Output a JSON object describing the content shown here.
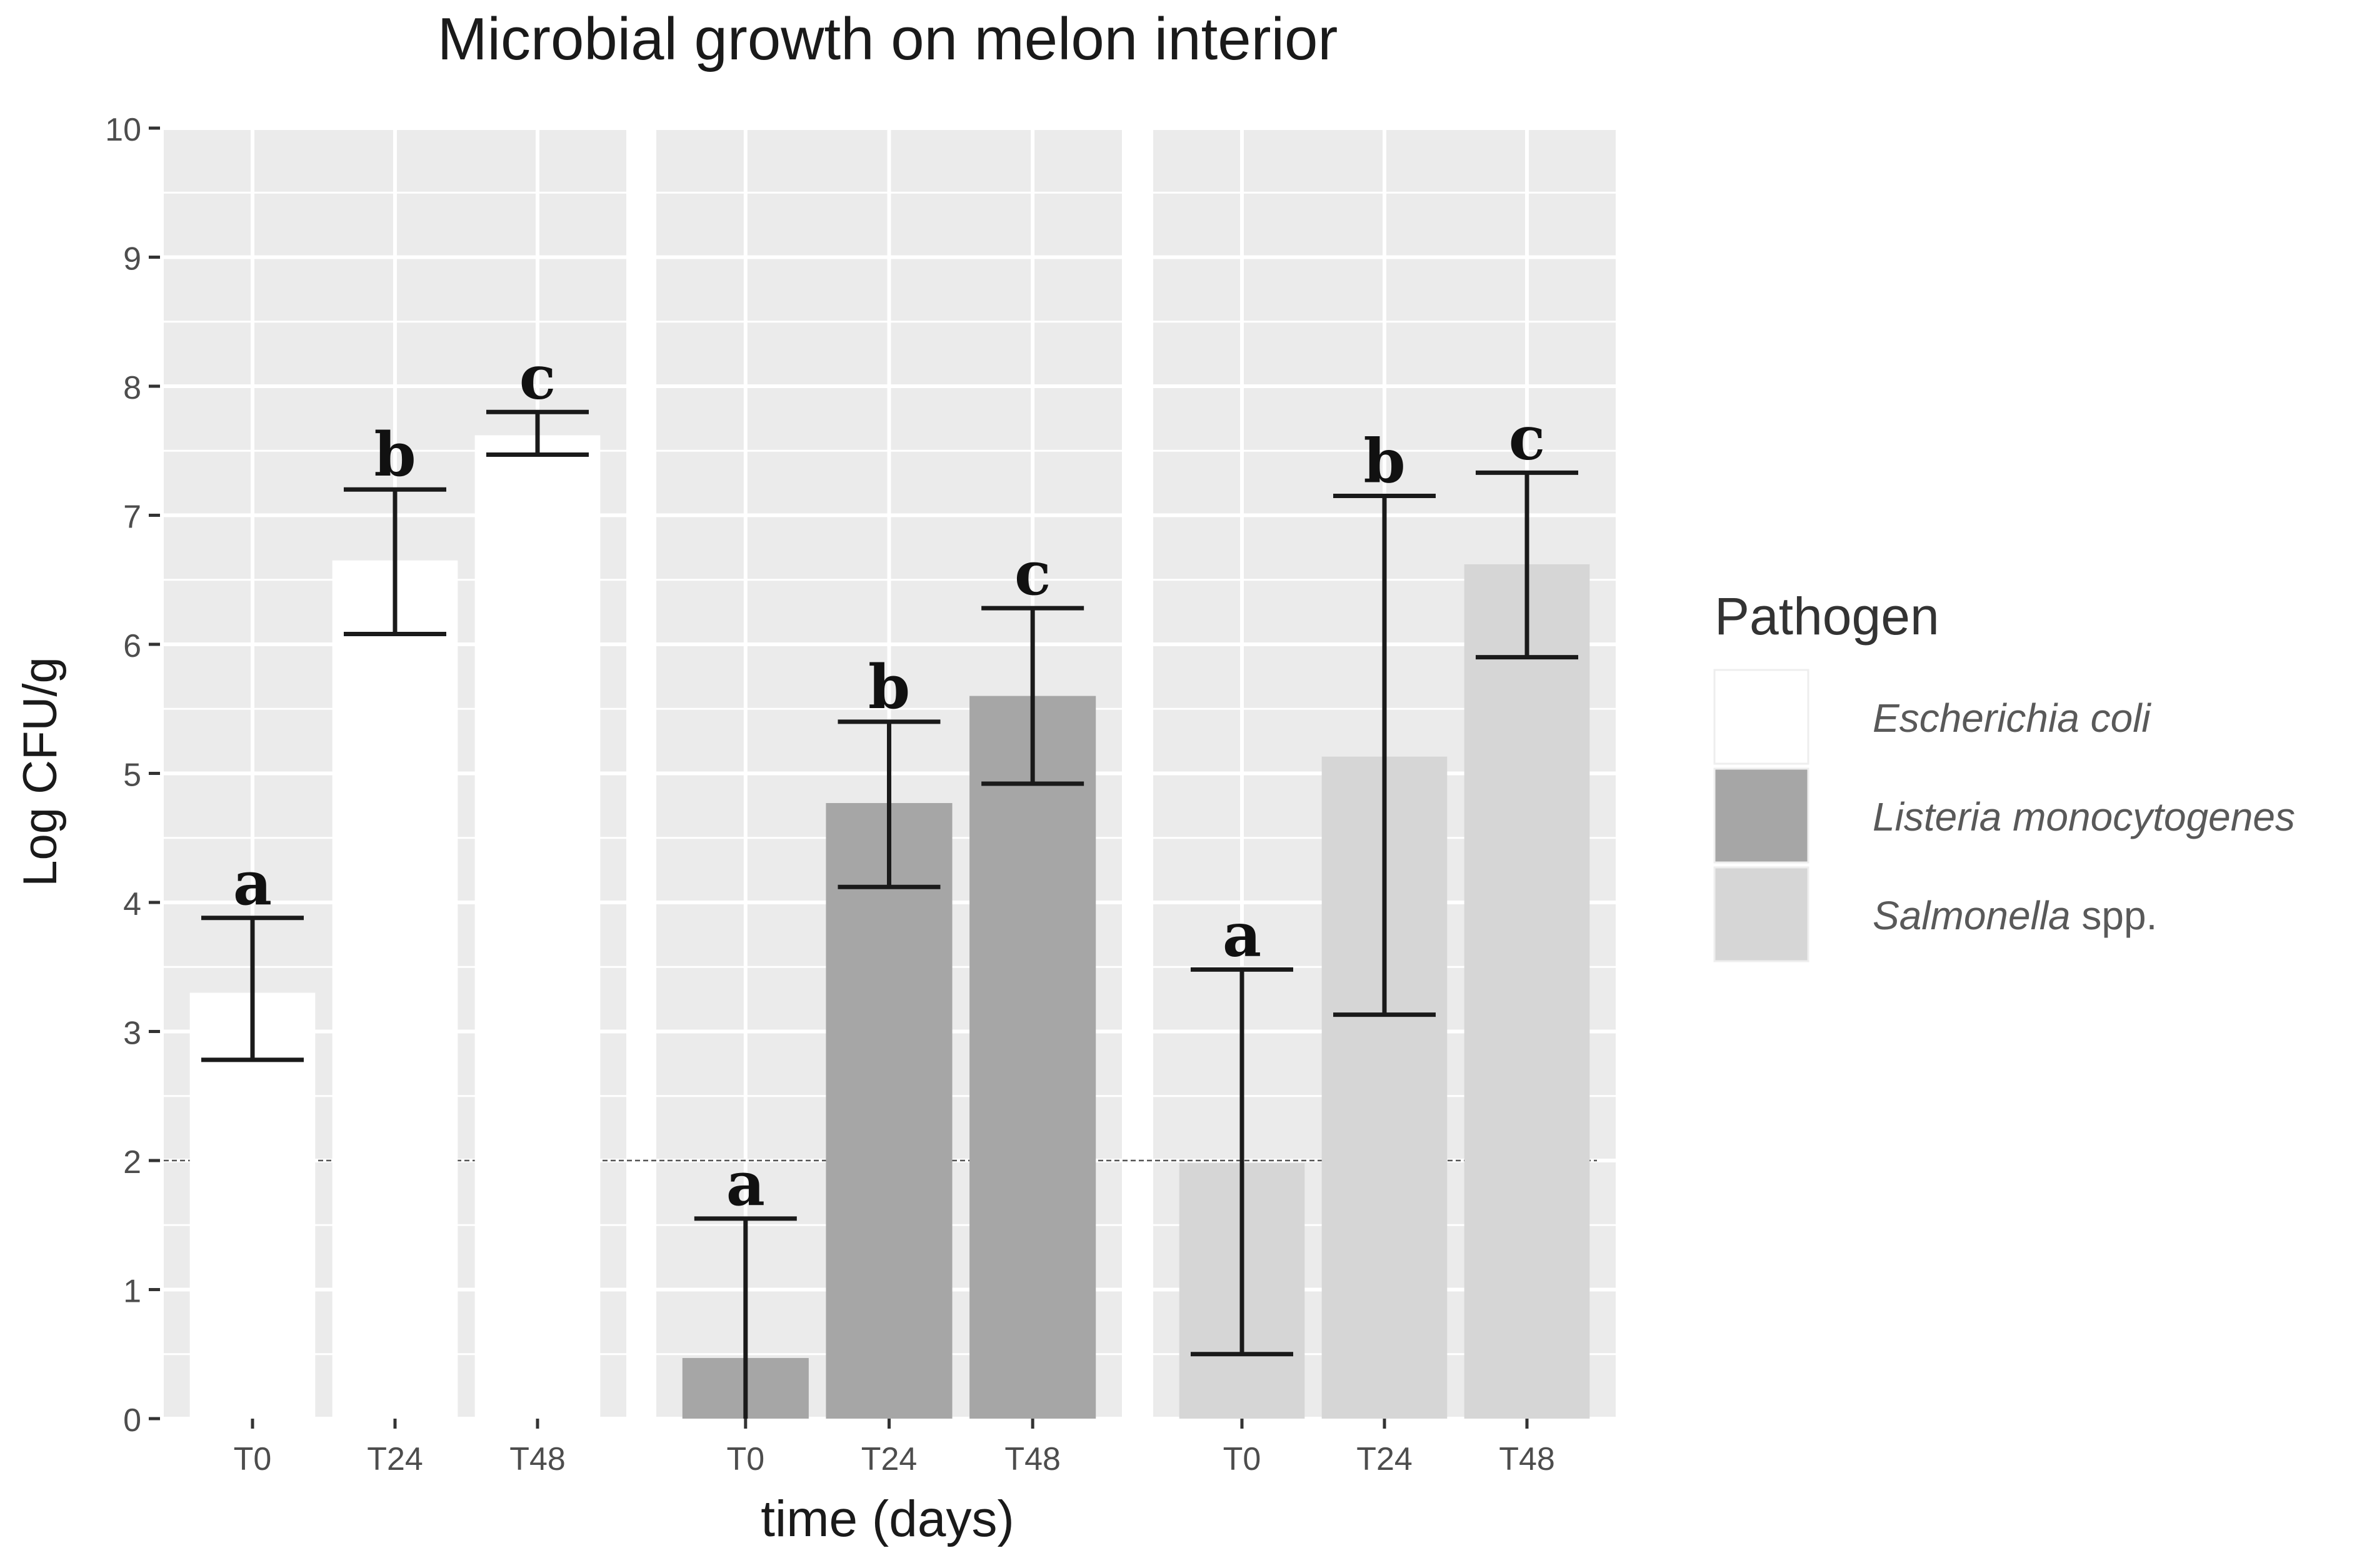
{
  "chart_data": {
    "type": "bar",
    "title": "Microbial growth on melon interior",
    "xlabel": "time (days)",
    "ylabel": "Log CFU/g",
    "ylim": [
      0,
      10
    ],
    "yticks": [
      "0",
      "1",
      "2",
      "3",
      "4",
      "5",
      "6",
      "7",
      "8",
      "9",
      "10"
    ],
    "categories": [
      "T0",
      "T24",
      "T48"
    ],
    "reference_line": {
      "y": 2,
      "style": "dashed"
    },
    "grid": true,
    "legend": {
      "title": "Pathogen",
      "position": "right",
      "entries": [
        {
          "italic": "Escherichia coli",
          "suffix": "",
          "color": "#ffffff"
        },
        {
          "italic": "Listeria monocytogenes",
          "suffix": "",
          "color": "#a6a6a6"
        },
        {
          "italic": "Salmonella",
          "suffix": " spp.",
          "color": "#d6d6d6"
        }
      ]
    },
    "series": [
      {
        "name": "Escherichia coli",
        "color": "#ffffff",
        "values": [
          3.3,
          6.65,
          7.62
        ],
        "err_low": [
          2.78,
          6.08,
          7.47
        ],
        "err_high": [
          3.88,
          7.2,
          7.8
        ],
        "labels": [
          "a",
          "b",
          "c"
        ]
      },
      {
        "name": "Listeria monocytogenes",
        "color": "#a6a6a6",
        "values": [
          0.47,
          4.77,
          5.6
        ],
        "err_low": [
          0,
          4.12,
          4.92
        ],
        "err_high": [
          1.55,
          5.4,
          6.28
        ],
        "labels": [
          "a",
          "b",
          "c"
        ]
      },
      {
        "name": "Salmonella spp.",
        "color": "#d6d6d6",
        "values": [
          1.98,
          5.13,
          6.62
        ],
        "err_low": [
          0.5,
          3.13,
          5.9
        ],
        "err_high": [
          3.48,
          7.15,
          7.33
        ],
        "labels": [
          "a",
          "b",
          "c"
        ]
      }
    ]
  }
}
